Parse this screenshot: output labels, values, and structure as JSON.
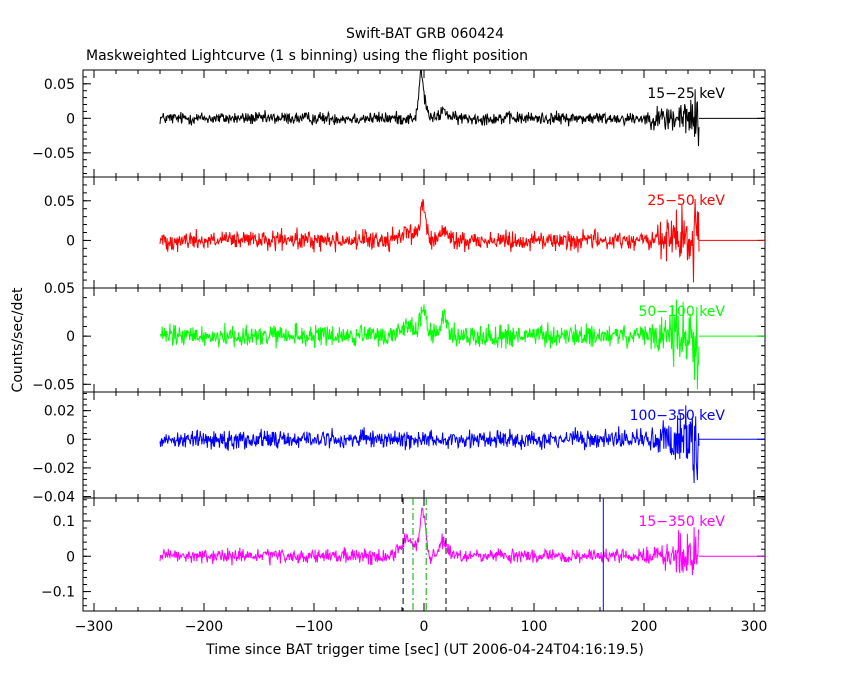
{
  "title": "Swift-BAT GRB 060424",
  "subtitle": "Maskweighted Lightcurve (1 s binning) using the flight position",
  "chart_data": {
    "type": "line",
    "xlabel": "Time since BAT trigger time [sec] (UT 2006-04-24T04:16:19.5)",
    "ylabel": "Counts/sec/det",
    "xlim": [
      -310,
      310
    ],
    "x_ticks": [
      -300,
      -200,
      -100,
      0,
      100,
      200,
      300
    ],
    "x_tick_labels": [
      "−300",
      "−200",
      "−100",
      "0",
      "100",
      "200",
      "300"
    ],
    "data_range": [
      -240,
      250
    ],
    "panels": [
      {
        "label": "15−25 keV",
        "color": "#000000",
        "ylim": [
          -0.085,
          0.07
        ],
        "y_ticks": [
          -0.05,
          0,
          0.05
        ],
        "y_tick_labels": [
          "−0.05",
          "0",
          "0.05"
        ],
        "noise": 0.0065,
        "peaks": [
          [
            -3,
            0.045,
            1.5
          ],
          [
            -1,
            0.03,
            3
          ],
          [
            18,
            0.012,
            3
          ]
        ]
      },
      {
        "label": "25−50 keV",
        "color": "#ff0000",
        "ylim": [
          -0.06,
          0.08
        ],
        "y_ticks": [
          0,
          0.05
        ],
        "y_tick_labels": [
          "0",
          "0.05"
        ],
        "noise": 0.0085,
        "peaks": [
          [
            -15,
            0.012,
            6
          ],
          [
            -1,
            0.045,
            2.5
          ],
          [
            18,
            0.012,
            3
          ]
        ]
      },
      {
        "label": "50−100 keV",
        "color": "#00ff00",
        "ylim": [
          -0.058,
          0.05
        ],
        "y_ticks": [
          -0.05,
          0,
          0.05
        ],
        "y_tick_labels": [
          "−0.05",
          "0",
          "0.05"
        ],
        "noise": 0.008,
        "peaks": [
          [
            -15,
            0.012,
            6
          ],
          [
            -1,
            0.03,
            2.5
          ],
          [
            18,
            0.02,
            3
          ]
        ]
      },
      {
        "label": "100−350 keV",
        "color": "#0000ff",
        "ylim": [
          -0.041,
          0.033
        ],
        "y_ticks": [
          -0.04,
          -0.02,
          0,
          0.02
        ],
        "y_tick_labels": [
          "−0.04",
          "−0.02",
          "0",
          "0.02"
        ],
        "noise": 0.0045,
        "peaks": []
      },
      {
        "label": "15−350 keV",
        "color": "#ff00ff",
        "ylim": [
          -0.155,
          0.165
        ],
        "y_ticks": [
          -0.1,
          0,
          0.1
        ],
        "y_tick_labels": [
          "−0.1",
          "0",
          "0.1"
        ],
        "noise": 0.014,
        "peaks": [
          [
            -15,
            0.05,
            6
          ],
          [
            -1,
            0.13,
            2.5
          ],
          [
            18,
            0.045,
            3
          ]
        ],
        "markers": [
          {
            "x": -19,
            "color": "#000000",
            "style": "dash"
          },
          {
            "x": 20,
            "color": "#000000",
            "style": "dash"
          },
          {
            "x": -10,
            "color": "#00aa00",
            "style": "dashdot"
          },
          {
            "x": 2,
            "color": "#00aa00",
            "style": "dashdot"
          },
          {
            "x": 163,
            "color": "#0000ff",
            "style": "solid"
          }
        ]
      }
    ]
  }
}
